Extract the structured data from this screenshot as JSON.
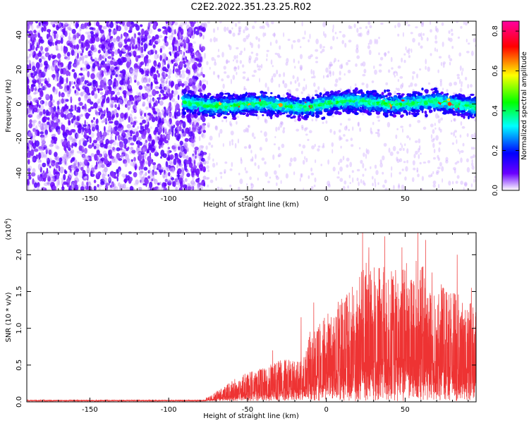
{
  "title": "C2E2.2022.351.23.25.R02",
  "chart_data": [
    {
      "type": "heatmap",
      "title": "C2E2.2022.351.23.25.R02",
      "xlabel": "Height of straight line (km)",
      "ylabel": "Frequency (Hz)",
      "xlim": [
        -190,
        95
      ],
      "ylim": [
        -50,
        48
      ],
      "x_ticks": [
        -150,
        -100,
        -50,
        0,
        50
      ],
      "x_tick_labels": [
        "-150",
        "-100",
        "-50",
        "0",
        "50"
      ],
      "y_ticks": [
        -40,
        -20,
        0,
        20,
        40
      ],
      "y_tick_labels": [
        "-40",
        "-20",
        "0",
        "20",
        "40"
      ],
      "colorbar": {
        "label": "Normalized spectral amplitude",
        "range": [
          0.0,
          0.85
        ],
        "ticks": [
          0.0,
          0.2,
          0.4,
          0.6,
          0.8
        ],
        "tick_labels": [
          "0.0",
          "0.2",
          "0.4",
          "0.6",
          "0.8"
        ],
        "colormap": [
          "#ffffff",
          "#6a00ff",
          "#0000ff",
          "#00ffff",
          "#00ff00",
          "#ffff00",
          "#ff0000",
          "#ff00a0"
        ]
      },
      "regions": [
        {
          "x_range": [
            -190,
            -85
          ],
          "type": "broadband_noise",
          "f_range": [
            -50,
            48
          ]
        },
        {
          "x_range": [
            -85,
            95
          ],
          "type": "signal_band",
          "center_hz": 0,
          "halfwidth_hz": 6
        }
      ]
    },
    {
      "type": "line",
      "xlabel": "Height of straight line (km)",
      "ylabel": "SNR (10 * v/v)",
      "scale_label": "(x10",
      "scale_exp": "4",
      "scale_close": ")",
      "xlim": [
        -190,
        95
      ],
      "ylim": [
        0,
        2.3
      ],
      "x_ticks": [
        -150,
        -100,
        -50,
        0,
        50
      ],
      "x_tick_labels": [
        "-150",
        "-100",
        "-50",
        "0",
        "50"
      ],
      "y_ticks": [
        0.0,
        0.5,
        1.0,
        1.5,
        2.0
      ],
      "y_tick_labels": [
        "0.0",
        "0.5",
        "1.0",
        "1.5",
        "2.0"
      ],
      "color": "#ee3333",
      "envelope": [
        {
          "x": -190,
          "y": 0.02
        },
        {
          "x": -80,
          "y": 0.02
        },
        {
          "x": -75,
          "y": 0.06
        },
        {
          "x": -65,
          "y": 0.2
        },
        {
          "x": -55,
          "y": 0.35
        },
        {
          "x": -40,
          "y": 0.45
        },
        {
          "x": -25,
          "y": 0.6
        },
        {
          "x": -15,
          "y": 0.55
        },
        {
          "x": -10,
          "y": 1.0
        },
        {
          "x": 0,
          "y": 1.2
        },
        {
          "x": 15,
          "y": 1.5
        },
        {
          "x": 25,
          "y": 1.9
        },
        {
          "x": 40,
          "y": 1.8
        },
        {
          "x": 55,
          "y": 1.95
        },
        {
          "x": 70,
          "y": 1.7
        },
        {
          "x": 95,
          "y": 1.3
        }
      ],
      "peaks": [
        {
          "x": -34,
          "y": 0.7
        },
        {
          "x": -16,
          "y": 1.15
        },
        {
          "x": -8,
          "y": 1.35
        },
        {
          "x": 23,
          "y": 2.3
        },
        {
          "x": 27,
          "y": 2.1
        },
        {
          "x": 37,
          "y": 2.25
        },
        {
          "x": 48,
          "y": 2.1
        },
        {
          "x": 58,
          "y": 2.3
        },
        {
          "x": 63,
          "y": 2.2
        },
        {
          "x": 83,
          "y": 2.0
        },
        {
          "x": 92,
          "y": 1.55
        }
      ]
    }
  ]
}
